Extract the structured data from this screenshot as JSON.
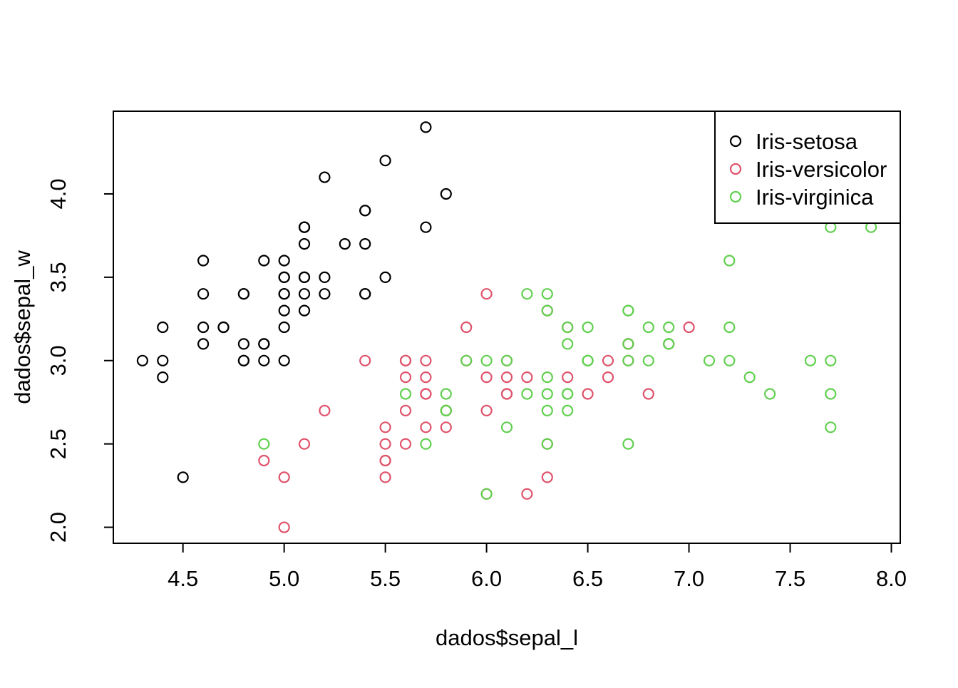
{
  "chart_data": {
    "type": "scatter",
    "title": "",
    "xlabel": "dados$sepal_l",
    "ylabel": "dados$sepal_w",
    "xlim": [
      4.156,
      8.044
    ],
    "ylim": [
      1.904,
      4.496
    ],
    "x_ticks": [
      4.5,
      5.0,
      5.5,
      6.0,
      6.5,
      7.0,
      7.5,
      8.0
    ],
    "x_tick_labels": [
      "4.5",
      "5.0",
      "5.5",
      "6.0",
      "6.5",
      "7.0",
      "7.5",
      "8.0"
    ],
    "y_ticks": [
      2.0,
      2.5,
      3.0,
      3.5,
      4.0
    ],
    "y_tick_labels": [
      "2.0",
      "2.5",
      "3.0",
      "3.5",
      "4.0"
    ],
    "grid": false,
    "legend_position": "top-right",
    "point_style": "open-circle",
    "series": [
      {
        "name": "Iris-setosa",
        "color": "#000000",
        "points": [
          [
            5.1,
            3.5
          ],
          [
            4.9,
            3.0
          ],
          [
            4.7,
            3.2
          ],
          [
            4.6,
            3.1
          ],
          [
            5.0,
            3.6
          ],
          [
            5.4,
            3.9
          ],
          [
            4.6,
            3.4
          ],
          [
            5.0,
            3.4
          ],
          [
            4.4,
            2.9
          ],
          [
            4.9,
            3.1
          ],
          [
            5.4,
            3.7
          ],
          [
            4.8,
            3.4
          ],
          [
            4.8,
            3.0
          ],
          [
            4.3,
            3.0
          ],
          [
            5.8,
            4.0
          ],
          [
            5.7,
            4.4
          ],
          [
            5.4,
            3.9
          ],
          [
            5.1,
            3.5
          ],
          [
            5.7,
            3.8
          ],
          [
            5.1,
            3.8
          ],
          [
            5.4,
            3.4
          ],
          [
            5.1,
            3.7
          ],
          [
            4.6,
            3.6
          ],
          [
            5.1,
            3.3
          ],
          [
            4.8,
            3.4
          ],
          [
            5.0,
            3.0
          ],
          [
            5.0,
            3.4
          ],
          [
            5.2,
            3.5
          ],
          [
            5.2,
            3.4
          ],
          [
            4.7,
            3.2
          ],
          [
            4.8,
            3.1
          ],
          [
            5.4,
            3.4
          ],
          [
            5.2,
            4.1
          ],
          [
            5.5,
            4.2
          ],
          [
            4.9,
            3.1
          ],
          [
            5.0,
            3.2
          ],
          [
            5.5,
            3.5
          ],
          [
            4.9,
            3.6
          ],
          [
            4.4,
            3.0
          ],
          [
            5.1,
            3.4
          ],
          [
            5.0,
            3.5
          ],
          [
            4.5,
            2.3
          ],
          [
            4.4,
            3.2
          ],
          [
            5.0,
            3.5
          ],
          [
            5.1,
            3.8
          ],
          [
            4.8,
            3.0
          ],
          [
            5.1,
            3.8
          ],
          [
            4.6,
            3.2
          ],
          [
            5.3,
            3.7
          ],
          [
            5.0,
            3.3
          ]
        ]
      },
      {
        "name": "Iris-versicolor",
        "color": "#DF536B",
        "points": [
          [
            7.0,
            3.2
          ],
          [
            6.4,
            3.2
          ],
          [
            6.9,
            3.1
          ],
          [
            5.5,
            2.3
          ],
          [
            6.5,
            2.8
          ],
          [
            5.7,
            2.8
          ],
          [
            6.3,
            3.3
          ],
          [
            4.9,
            2.4
          ],
          [
            6.6,
            2.9
          ],
          [
            5.2,
            2.7
          ],
          [
            5.0,
            2.0
          ],
          [
            5.9,
            3.0
          ],
          [
            6.0,
            2.2
          ],
          [
            6.1,
            2.9
          ],
          [
            5.6,
            2.9
          ],
          [
            6.7,
            3.1
          ],
          [
            5.6,
            3.0
          ],
          [
            5.8,
            2.7
          ],
          [
            6.2,
            2.2
          ],
          [
            5.6,
            2.5
          ],
          [
            5.9,
            3.2
          ],
          [
            6.1,
            2.8
          ],
          [
            6.3,
            2.5
          ],
          [
            6.1,
            2.8
          ],
          [
            6.4,
            2.9
          ],
          [
            6.6,
            3.0
          ],
          [
            6.8,
            2.8
          ],
          [
            6.7,
            3.0
          ],
          [
            6.0,
            2.9
          ],
          [
            5.7,
            2.6
          ],
          [
            5.5,
            2.4
          ],
          [
            5.5,
            2.4
          ],
          [
            5.8,
            2.7
          ],
          [
            6.0,
            2.7
          ],
          [
            5.4,
            3.0
          ],
          [
            6.0,
            3.4
          ],
          [
            6.7,
            3.1
          ],
          [
            6.3,
            2.3
          ],
          [
            5.6,
            3.0
          ],
          [
            5.5,
            2.5
          ],
          [
            5.5,
            2.6
          ],
          [
            6.1,
            3.0
          ],
          [
            5.8,
            2.6
          ],
          [
            5.0,
            2.3
          ],
          [
            5.6,
            2.7
          ],
          [
            5.7,
            3.0
          ],
          [
            5.7,
            2.9
          ],
          [
            6.2,
            2.9
          ],
          [
            5.1,
            2.5
          ],
          [
            5.7,
            2.8
          ]
        ]
      },
      {
        "name": "Iris-virginica",
        "color": "#61D04F",
        "points": [
          [
            6.3,
            3.3
          ],
          [
            5.8,
            2.7
          ],
          [
            7.1,
            3.0
          ],
          [
            6.3,
            2.9
          ],
          [
            6.5,
            3.0
          ],
          [
            7.6,
            3.0
          ],
          [
            4.9,
            2.5
          ],
          [
            7.3,
            2.9
          ],
          [
            6.7,
            2.5
          ],
          [
            7.2,
            3.6
          ],
          [
            6.5,
            3.2
          ],
          [
            6.4,
            2.7
          ],
          [
            6.8,
            3.0
          ],
          [
            5.7,
            2.5
          ],
          [
            5.8,
            2.8
          ],
          [
            6.4,
            3.2
          ],
          [
            6.5,
            3.0
          ],
          [
            7.7,
            3.8
          ],
          [
            7.7,
            2.6
          ],
          [
            6.0,
            2.2
          ],
          [
            6.9,
            3.2
          ],
          [
            5.6,
            2.8
          ],
          [
            7.7,
            2.8
          ],
          [
            6.3,
            2.7
          ],
          [
            6.7,
            3.3
          ],
          [
            7.2,
            3.2
          ],
          [
            6.2,
            2.8
          ],
          [
            6.1,
            3.0
          ],
          [
            6.4,
            2.8
          ],
          [
            7.2,
            3.0
          ],
          [
            7.4,
            2.8
          ],
          [
            7.9,
            3.8
          ],
          [
            6.4,
            2.8
          ],
          [
            6.3,
            2.8
          ],
          [
            6.1,
            2.6
          ],
          [
            7.7,
            3.0
          ],
          [
            6.3,
            3.4
          ],
          [
            6.4,
            3.1
          ],
          [
            6.0,
            3.0
          ],
          [
            6.9,
            3.1
          ],
          [
            6.7,
            3.1
          ],
          [
            6.9,
            3.1
          ],
          [
            5.8,
            2.7
          ],
          [
            6.8,
            3.2
          ],
          [
            6.7,
            3.3
          ],
          [
            6.7,
            3.0
          ],
          [
            6.3,
            2.5
          ],
          [
            6.5,
            3.0
          ],
          [
            6.2,
            3.4
          ],
          [
            5.9,
            3.0
          ]
        ]
      }
    ]
  }
}
